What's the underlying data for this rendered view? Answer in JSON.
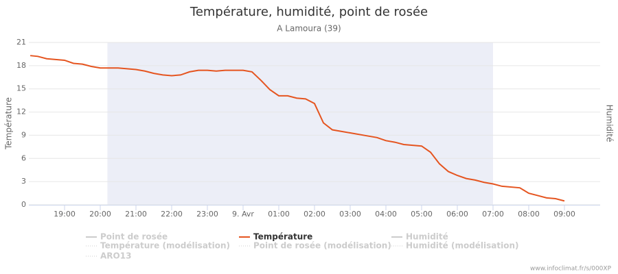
{
  "chart_data": {
    "type": "line",
    "title": "Température, humidité, point de rosée",
    "subtitle": "A Lamoura (39)",
    "y_label": "Température",
    "y2_label": "Humidité",
    "credits": "www.infoclimat.fr/s/000XP",
    "x": [
      18.04,
      18.25,
      18.5,
      18.75,
      19,
      19.25,
      19.5,
      19.75,
      20,
      20.5,
      21,
      21.25,
      21.5,
      21.75,
      22,
      22.25,
      22.5,
      22.75,
      23,
      23.25,
      23.5,
      24,
      24.25,
      24.5,
      24.75,
      25,
      25.25,
      25.5,
      25.75,
      26,
      26.25,
      26.5,
      27,
      27.5,
      27.75,
      28,
      28.25,
      28.5,
      29,
      29.25,
      29.5,
      29.75,
      30,
      30.25,
      30.5,
      30.75,
      31,
      31.25,
      31.75,
      32,
      32.25,
      32.5,
      32.75,
      33
    ],
    "series": [
      {
        "name": "Point de rosée",
        "visible": false
      },
      {
        "name": "Température",
        "color": "#e5541f",
        "visible": true,
        "values": [
          19.3,
          19.2,
          18.9,
          18.8,
          18.7,
          18.3,
          18.2,
          17.9,
          17.7,
          17.7,
          17.5,
          17.3,
          17.0,
          16.8,
          16.7,
          16.8,
          17.2,
          17.4,
          17.4,
          17.3,
          17.4,
          17.4,
          17.2,
          16.1,
          14.9,
          14.1,
          14.1,
          13.8,
          13.7,
          13.1,
          10.6,
          9.7,
          9.3,
          8.9,
          8.7,
          8.3,
          8.1,
          7.8,
          7.6,
          6.8,
          5.3,
          4.3,
          3.8,
          3.4,
          3.2,
          2.9,
          2.7,
          2.4,
          2.2,
          1.5,
          1.2,
          0.9,
          0.8,
          0.5
        ]
      },
      {
        "name": "Humidité",
        "visible": false
      },
      {
        "name": "Température (modélisation)",
        "visible": false,
        "dash": "dotted"
      },
      {
        "name": "Point de rosée (modélisation)",
        "visible": false,
        "dash": "dotted"
      },
      {
        "name": "Humidité (modélisation)",
        "visible": false,
        "dash": "dotted"
      },
      {
        "name": "ARO13",
        "visible": false,
        "dash": "dotted"
      }
    ],
    "xlim": [
      18,
      34
    ],
    "xticks": [
      {
        "value": 19,
        "label": "19:00"
      },
      {
        "value": 20,
        "label": "20:00"
      },
      {
        "value": 21,
        "label": "21:00"
      },
      {
        "value": 22,
        "label": "22:00"
      },
      {
        "value": 23,
        "label": "23:00"
      },
      {
        "value": 24,
        "label": "9. Avr"
      },
      {
        "value": 25,
        "label": "01:00"
      },
      {
        "value": 26,
        "label": "02:00"
      },
      {
        "value": 27,
        "label": "03:00"
      },
      {
        "value": 28,
        "label": "04:00"
      },
      {
        "value": 29,
        "label": "05:00"
      },
      {
        "value": 30,
        "label": "06:00"
      },
      {
        "value": 31,
        "label": "07:00"
      },
      {
        "value": 32,
        "label": "08:00"
      },
      {
        "value": 33,
        "label": "09:00"
      }
    ],
    "ylim": [
      0,
      21
    ],
    "yticks": [
      0,
      3,
      6,
      9,
      12,
      15,
      18,
      21
    ],
    "plot_band": [
      20.2,
      31
    ],
    "plot_band_color": "#eceef7",
    "grid": true
  }
}
